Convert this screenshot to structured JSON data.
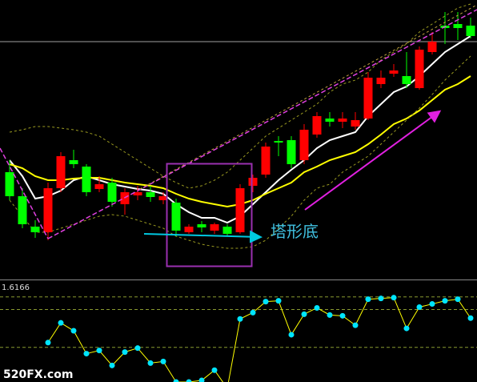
{
  "chart_data": [
    {
      "type": "candlestick",
      "ylim": [
        0,
        350
      ],
      "open": [
        135,
        105,
        67,
        60,
        115,
        150,
        142,
        114,
        122,
        95,
        106,
        110,
        100,
        97,
        60,
        70,
        62,
        67,
        60,
        118,
        132,
        174,
        175,
        150,
        182,
        202,
        198,
        192,
        202,
        245,
        258,
        255,
        240,
        285,
        318,
        320,
        318
      ],
      "high": [
        150,
        115,
        75,
        122,
        160,
        163,
        145,
        130,
        128,
        115,
        118,
        118,
        110,
        102,
        70,
        74,
        72,
        70,
        120,
        132,
        172,
        180,
        180,
        195,
        210,
        210,
        210,
        210,
        260,
        262,
        270,
        285,
        292,
        310,
        335,
        335,
        328
      ],
      "low": [
        100,
        65,
        53,
        50,
        110,
        140,
        105,
        110,
        92,
        82,
        100,
        98,
        95,
        55,
        58,
        60,
        58,
        55,
        58,
        110,
        128,
        155,
        140,
        145,
        178,
        192,
        190,
        188,
        200,
        240,
        254,
        240,
        238,
        282,
        295,
        300,
        302
      ],
      "close": [
        105,
        70,
        60,
        115,
        155,
        145,
        110,
        120,
        98,
        110,
        110,
        104,
        105,
        62,
        67,
        66,
        70,
        58,
        115,
        128,
        167,
        172,
        145,
        188,
        205,
        198,
        202,
        200,
        253,
        253,
        262,
        245,
        288,
        298,
        315,
        315,
        305
      ],
      "up_color": "#ff0000",
      "down_color": "#00ff00",
      "lines": [
        {
          "color": "#ffffff",
          "dashed": false,
          "values": [
            150,
            130,
            102,
            105,
            112,
            125,
            130,
            125,
            120,
            117,
            114,
            112,
            108,
            95,
            85,
            78,
            78,
            72,
            80,
            95,
            110,
            125,
            138,
            150,
            165,
            175,
            180,
            185,
            205,
            220,
            235,
            242,
            255,
            270,
            285,
            295,
            305
          ]
        },
        {
          "color": "#ffff00",
          "dashed": false,
          "values": [
            145,
            140,
            130,
            125,
            125,
            127,
            128,
            128,
            125,
            122,
            120,
            118,
            115,
            108,
            102,
            98,
            95,
            92,
            95,
            100,
            108,
            115,
            122,
            135,
            142,
            150,
            155,
            160,
            170,
            182,
            195,
            202,
            212,
            225,
            238,
            245,
            255
          ]
        },
        {
          "color": "#9a9a20",
          "dashed": true,
          "values": [
            185,
            188,
            192,
            192,
            190,
            188,
            185,
            180,
            170,
            160,
            150,
            140,
            130,
            122,
            115,
            118,
            125,
            135,
            150,
            165,
            180,
            190,
            200,
            210,
            220,
            235,
            245,
            250,
            260,
            275,
            285,
            295,
            310,
            320,
            330,
            340,
            345
          ]
        },
        {
          "color": "#9a9a20",
          "dashed": true,
          "values": [
            100,
            80,
            60,
            60,
            65,
            70,
            75,
            80,
            82,
            80,
            75,
            70,
            65,
            55,
            50,
            45,
            42,
            40,
            40,
            42,
            50,
            65,
            80,
            100,
            115,
            120,
            135,
            145,
            155,
            170,
            185,
            200,
            215,
            232,
            250,
            265,
            280
          ]
        }
      ],
      "price_line": 298,
      "annotation": "塔形底"
    },
    {
      "type": "line",
      "scale_label": "1.6166",
      "ylim": [
        0,
        127
      ],
      "levels": [
        108,
        92,
        44
      ],
      "values": [
        null,
        null,
        null,
        50,
        75,
        65,
        36,
        40,
        21,
        38,
        43,
        24,
        26,
        0,
        0,
        2,
        15,
        -8,
        80,
        88,
        102,
        103,
        60,
        86,
        94,
        85,
        84,
        72,
        105,
        106,
        107,
        68,
        95,
        99,
        103,
        105,
        81
      ],
      "line_color": "#ffff00",
      "marker_color": "#00e5ff"
    }
  ],
  "watermark": "520FX.com"
}
